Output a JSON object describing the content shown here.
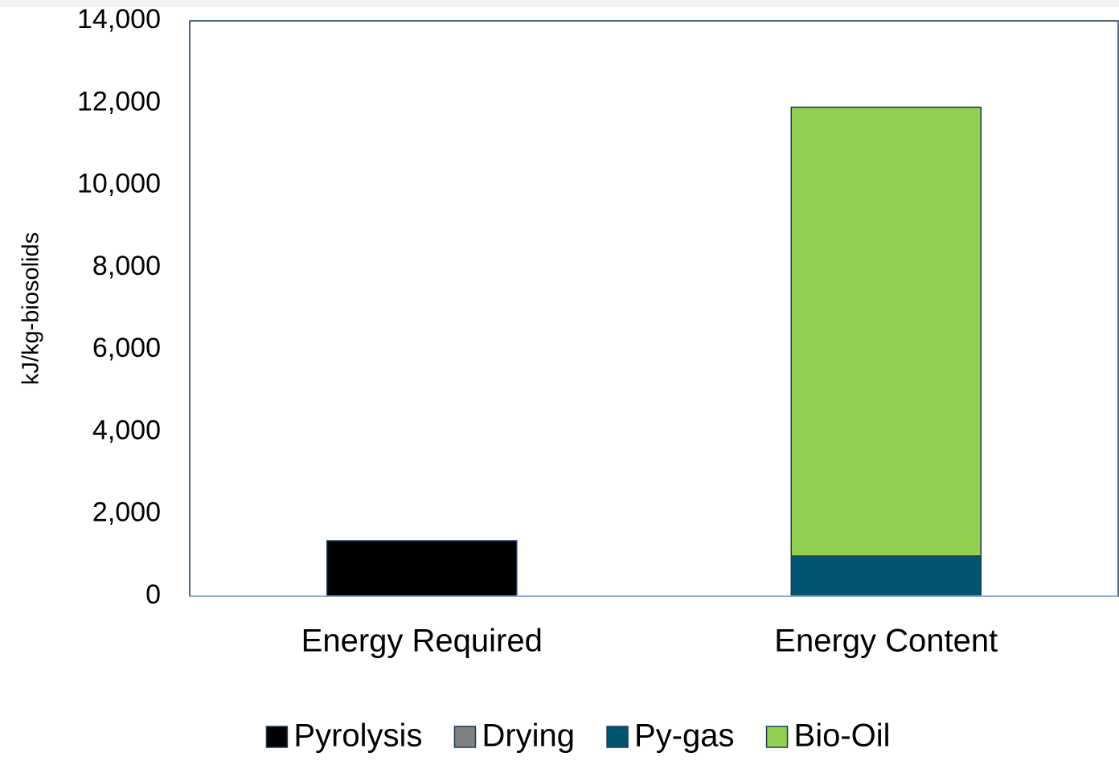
{
  "chart_data": {
    "type": "stacked-bar",
    "y_label": "kJ/kg-biosolids",
    "categories": [
      "Energy Required",
      "Energy Content"
    ],
    "series": [
      {
        "name": "Pyrolysis",
        "color": "#000000",
        "values": [
          1350,
          0
        ]
      },
      {
        "name": "Drying",
        "color": "#808080",
        "values": [
          0,
          0
        ]
      },
      {
        "name": "Py-gas",
        "color": "#00566f",
        "values": [
          0,
          980
        ]
      },
      {
        "name": "Bio-Oil",
        "color": "#92d050",
        "values": [
          0,
          10920
        ]
      }
    ],
    "ylim": [
      0,
      14000
    ],
    "yticks": [
      0,
      {
        "value": 2000,
        "label": "2,000"
      },
      {
        "value": 4000,
        "label": "4,000"
      },
      {
        "value": 6000,
        "label": "6,000"
      },
      {
        "value": 8000,
        "label": "8,000"
      },
      {
        "value": 10000,
        "label": "10,000"
      },
      {
        "value": 12000,
        "label": "12,000"
      },
      {
        "value": 14000,
        "label": "14,000"
      }
    ],
    "legend": "bottom"
  }
}
